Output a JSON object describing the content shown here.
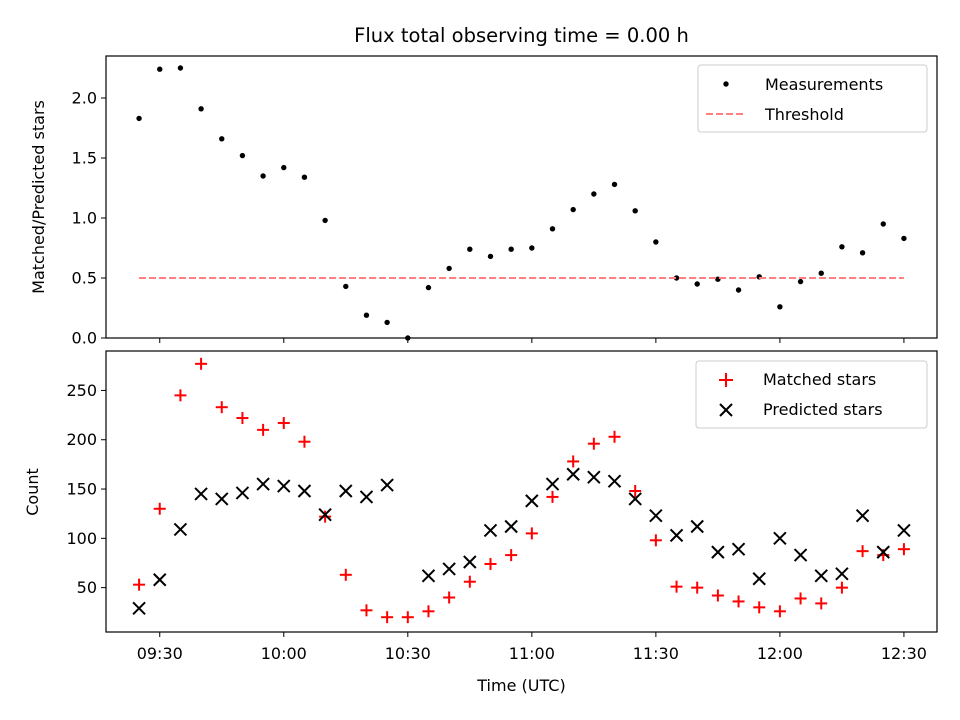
{
  "chart_data": [
    {
      "type": "scatter",
      "title": "Flux total observing time = 0.00 h",
      "xlabel": "",
      "ylabel": "Matched/Predicted stars",
      "ylim": [
        0,
        2.35
      ],
      "yticks": [
        0.0,
        0.5,
        1.0,
        1.5,
        2.0
      ],
      "ytick_labels": [
        "0.0",
        "0.5",
        "1.0",
        "1.5",
        "2.0"
      ],
      "legend_position": "top-right",
      "series": [
        {
          "name": "Measurements",
          "marker": "dot",
          "color": "#000000",
          "x": [
            "09:25",
            "09:30",
            "09:35",
            "09:40",
            "09:45",
            "09:50",
            "09:55",
            "10:00",
            "10:05",
            "10:10",
            "10:15",
            "10:20",
            "10:25",
            "10:30",
            "10:35",
            "10:40",
            "10:45",
            "10:50",
            "10:55",
            "11:00",
            "11:05",
            "11:10",
            "11:15",
            "11:20",
            "11:25",
            "11:30",
            "11:35",
            "11:40",
            "11:45",
            "11:50",
            "11:55",
            "12:00",
            "12:05",
            "12:10",
            "12:15",
            "12:20",
            "12:25",
            "12:30"
          ],
          "y": [
            1.83,
            2.24,
            2.25,
            1.91,
            1.66,
            1.52,
            1.35,
            1.42,
            1.34,
            0.98,
            0.43,
            0.19,
            0.13,
            0.0,
            0.42,
            0.58,
            0.74,
            0.68,
            0.74,
            0.75,
            0.91,
            1.07,
            1.2,
            1.28,
            1.06,
            0.8,
            0.5,
            0.45,
            0.49,
            0.4,
            0.51,
            0.26,
            0.47,
            0.54,
            0.76,
            0.71,
            0.95,
            0.83
          ]
        },
        {
          "name": "Threshold",
          "style": "dashed-line",
          "color": "#ff8080",
          "x": [
            "09:25",
            "12:30"
          ],
          "y": [
            0.5,
            0.5
          ]
        }
      ]
    },
    {
      "type": "scatter",
      "title": "",
      "xlabel": "Time (UTC)",
      "ylabel": "Count",
      "ylim": [
        5,
        290
      ],
      "yticks": [
        50,
        100,
        150,
        200,
        250
      ],
      "ytick_labels": [
        "50",
        "100",
        "150",
        "200",
        "250"
      ],
      "legend_position": "top-right",
      "series": [
        {
          "name": "Matched stars",
          "marker": "plus",
          "color": "#ff0000",
          "x": [
            "09:25",
            "09:30",
            "09:35",
            "09:40",
            "09:45",
            "09:50",
            "09:55",
            "10:00",
            "10:05",
            "10:10",
            "10:15",
            "10:20",
            "10:25",
            "10:30",
            "10:35",
            "10:40",
            "10:45",
            "10:50",
            "10:55",
            "11:00",
            "11:05",
            "11:10",
            "11:15",
            "11:20",
            "11:25",
            "11:30",
            "11:35",
            "11:40",
            "11:45",
            "11:50",
            "11:55",
            "12:00",
            "12:05",
            "12:10",
            "12:15",
            "12:20",
            "12:25",
            "12:30"
          ],
          "y": [
            53,
            130,
            245,
            277,
            233,
            222,
            210,
            217,
            198,
            122,
            63,
            27,
            20,
            20,
            26,
            40,
            56,
            74,
            83,
            105,
            142,
            178,
            196,
            203,
            148,
            98,
            51,
            50,
            42,
            36,
            30,
            26,
            39,
            34,
            50,
            87,
            83,
            89
          ]
        },
        {
          "name": "Predicted stars",
          "marker": "x",
          "color": "#000000",
          "x": [
            "09:25",
            "09:30",
            "09:35",
            "09:40",
            "09:45",
            "09:50",
            "09:55",
            "10:00",
            "10:05",
            "10:10",
            "10:15",
            "10:20",
            "10:25",
            "10:35",
            "10:40",
            "10:45",
            "10:50",
            "10:55",
            "11:00",
            "11:05",
            "11:10",
            "11:15",
            "11:20",
            "11:25",
            "11:30",
            "11:35",
            "11:40",
            "11:45",
            "11:50",
            "11:55",
            "12:00",
            "12:05",
            "12:10",
            "12:15",
            "12:20",
            "12:25",
            "12:30"
          ],
          "y": [
            29,
            58,
            109,
            145,
            140,
            146,
            155,
            153,
            148,
            124,
            148,
            142,
            154,
            62,
            69,
            76,
            108,
            112,
            138,
            155,
            165,
            162,
            158,
            140,
            123,
            103,
            112,
            86,
            89,
            59,
            100,
            83,
            62,
            64,
            123,
            86,
            108
          ]
        }
      ]
    }
  ],
  "x_axis": {
    "ticks": [
      "09:30",
      "10:00",
      "10:30",
      "11:00",
      "11:30",
      "12:00",
      "12:30"
    ],
    "range": [
      "09:17",
      "12:38"
    ]
  }
}
